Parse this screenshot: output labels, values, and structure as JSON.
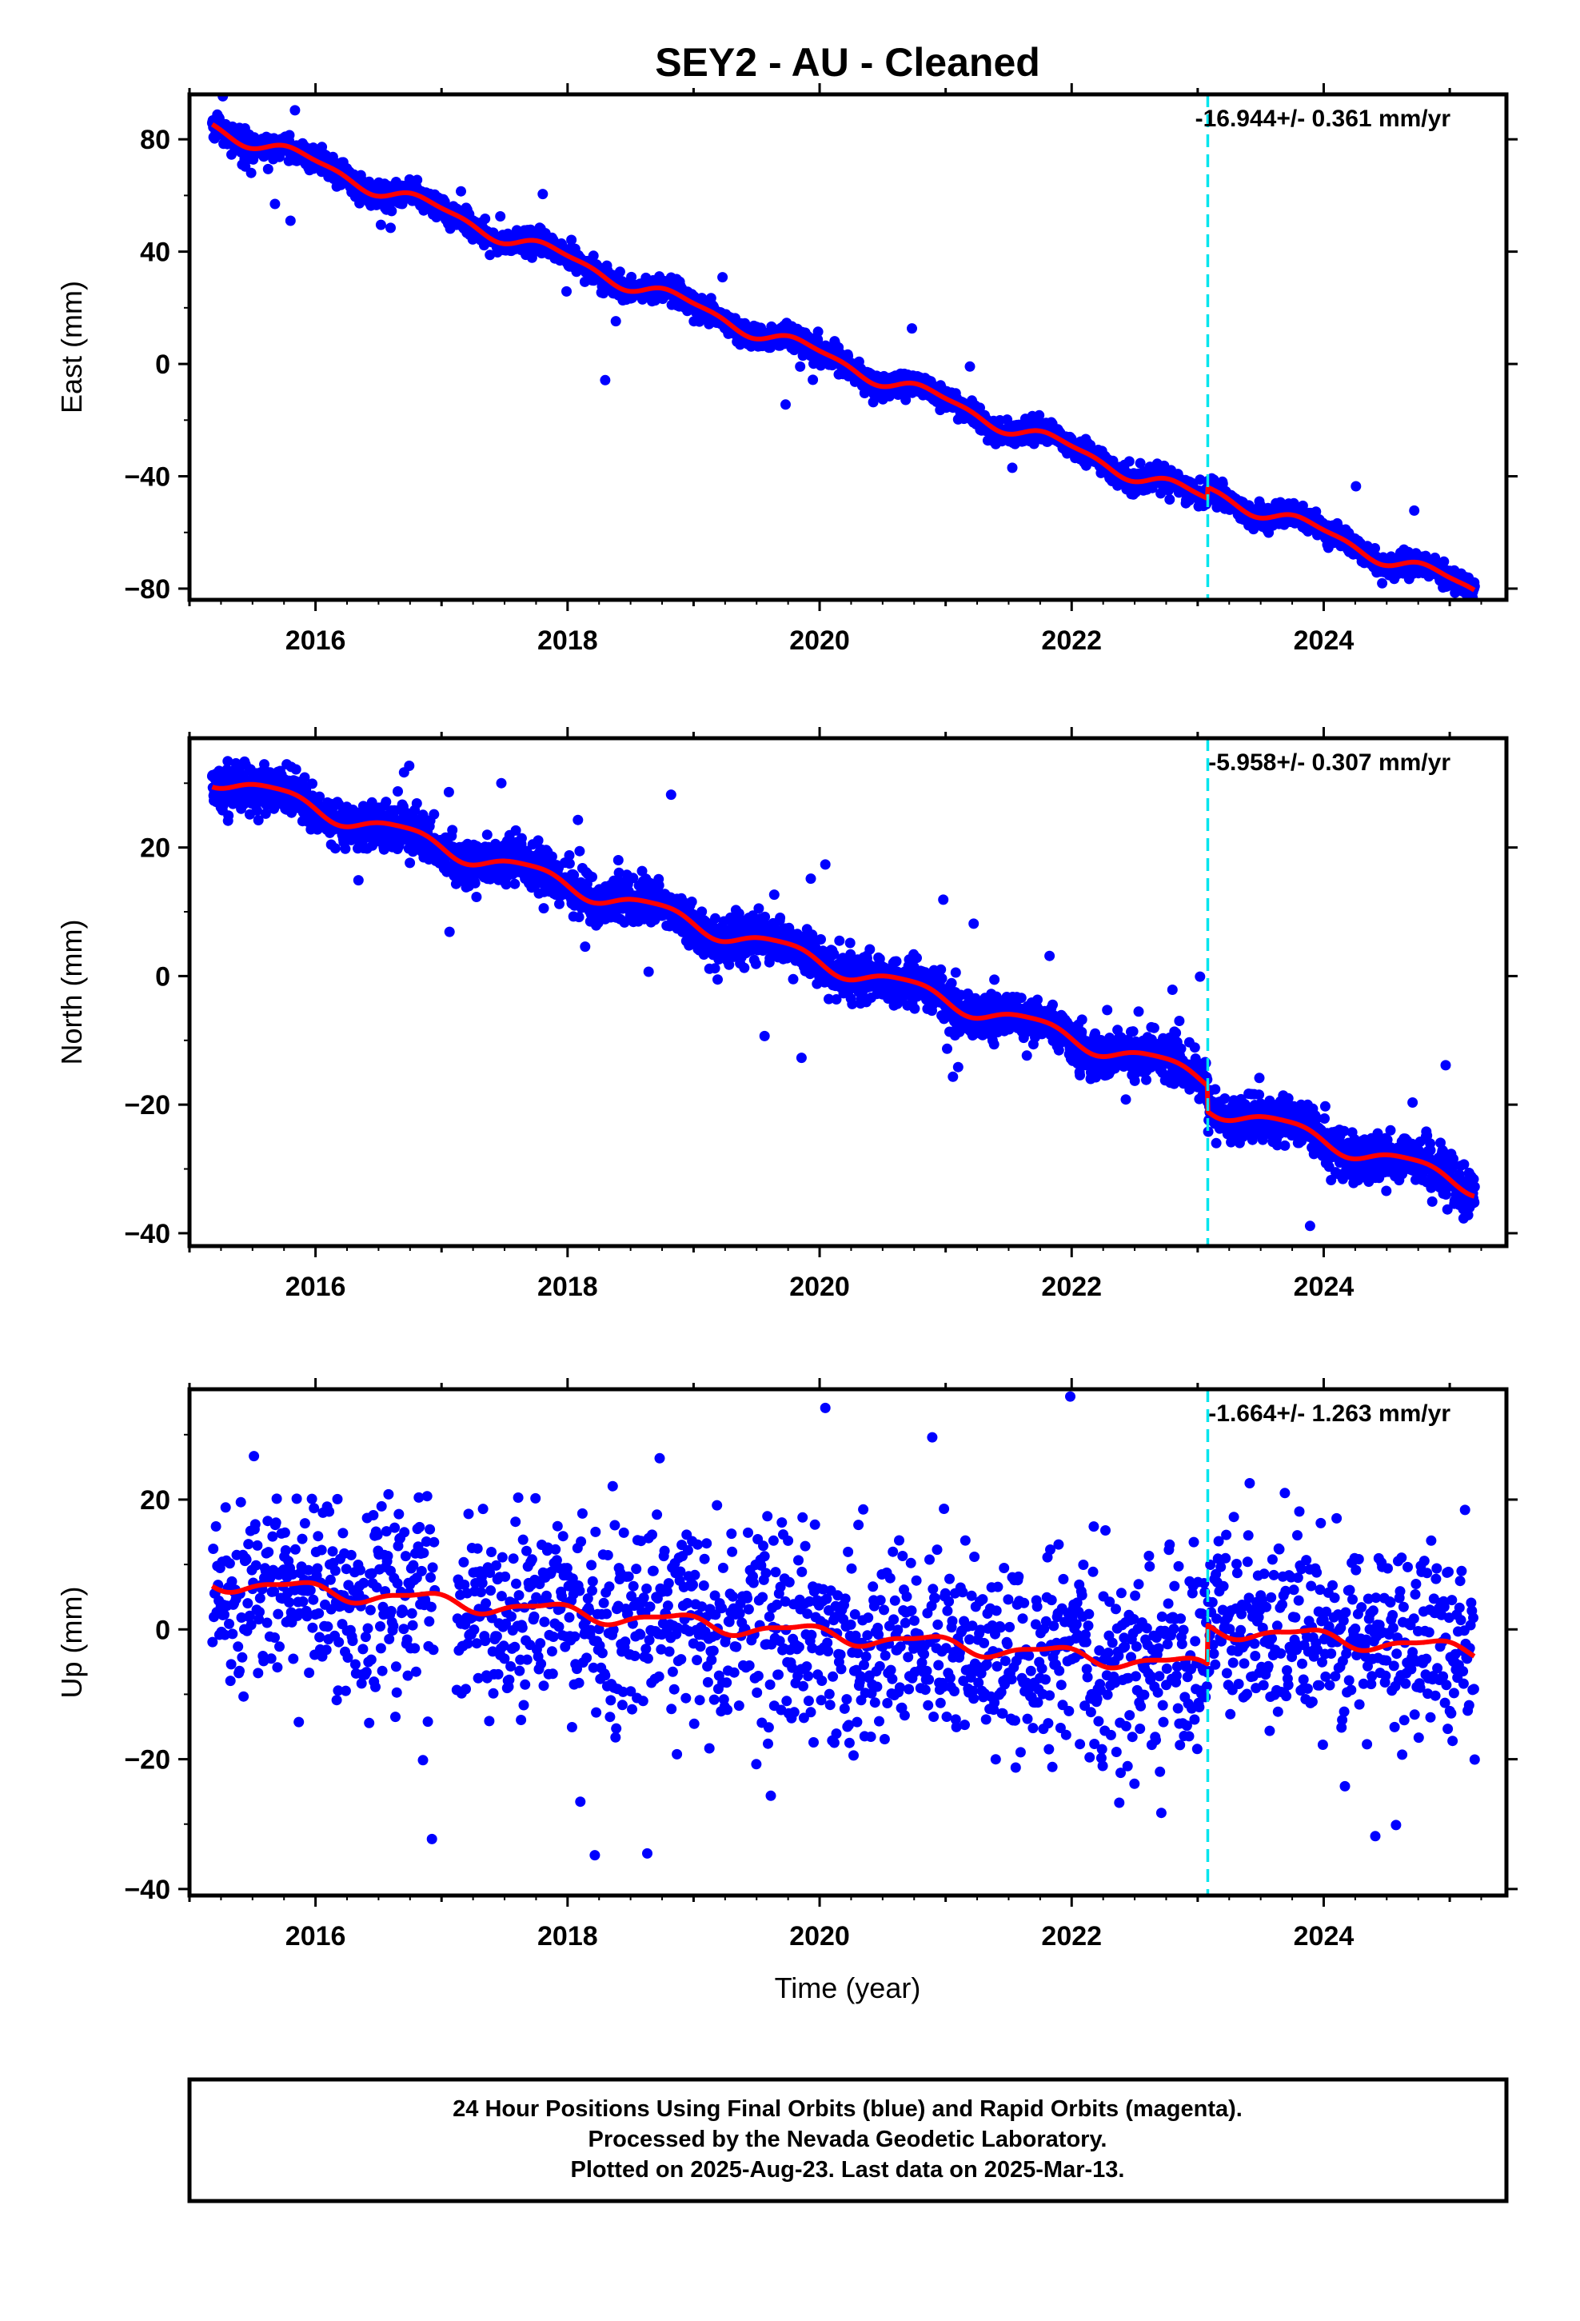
{
  "title": "SEY2  - AU - Cleaned",
  "xlabel": "Time (year)",
  "footer": {
    "lines": [
      "24 Hour Positions Using Final Orbits (blue) and Rapid Orbits (magenta).",
      "Processed by the Nevada Geodetic Laboratory.",
      "Plotted on 2025-Aug-23. Last data on 2025-Mar-13."
    ]
  },
  "colors": {
    "points": "#0000ff",
    "model": "#ff0000",
    "step_line": "#00e5ee",
    "frame": "#000000"
  },
  "chart_data": [
    {
      "type": "scatter",
      "ylabel": "East (mm)",
      "rate_text": "-16.944+/- 0.361 mm/yr",
      "xlim": [
        2015.0,
        2025.45
      ],
      "ylim": [
        -84,
        96
      ],
      "x_ticks": [
        2016,
        2018,
        2020,
        2022,
        2024
      ],
      "y_ticks": [
        80,
        40,
        0,
        -40,
        -80
      ],
      "grid": false,
      "step_epoch": 2023.08,
      "data_start": 2015.18,
      "data_end": 2025.2,
      "gaps": [],
      "model": {
        "rate": -16.944,
        "pivot": 2020.2,
        "intercept": 0.0,
        "annual_amp": 2.6,
        "annual_phase": 0.35,
        "semi_amp": 0.9,
        "semi_phase": 0.9,
        "step": 4.0,
        "step_epoch": 2023.08,
        "noise": 2.0,
        "outlier_rate": 0.01,
        "outlier_scale": 6.0
      },
      "series": [
        {
          "name": "24 Hour Positions (Final Orbits)",
          "values_kind": "daily positions"
        },
        {
          "name": "model",
          "values_kind": "fitted trajectory"
        }
      ]
    },
    {
      "type": "scatter",
      "ylabel": "North (mm)",
      "rate_text": "-5.958+/- 0.307 mm/yr",
      "xlim": [
        2015.0,
        2025.45
      ],
      "ylim": [
        -42,
        37
      ],
      "x_ticks": [
        2016,
        2018,
        2020,
        2022,
        2024
      ],
      "y_ticks": [
        20,
        0,
        -20,
        -40
      ],
      "grid": false,
      "step_epoch": 2023.08,
      "data_start": 2015.18,
      "data_end": 2025.2,
      "gaps": [],
      "model": {
        "rate": -5.958,
        "pivot": 2020.2,
        "intercept": 1.2,
        "annual_amp": 1.4,
        "annual_phase": 0.55,
        "semi_amp": 0.3,
        "semi_phase": 0.2,
        "step": -4.0,
        "step_epoch": 2023.08,
        "noise": 1.7,
        "outlier_rate": 0.015,
        "outlier_scale": 5.5
      },
      "series": [
        {
          "name": "24 Hour Positions (Final Orbits)",
          "values_kind": "daily positions"
        },
        {
          "name": "model",
          "values_kind": "fitted trajectory"
        }
      ]
    },
    {
      "type": "scatter",
      "ylabel": "Up (mm)",
      "rate_text": "-1.664+/- 1.263 mm/yr",
      "xlim": [
        2015.0,
        2025.45
      ],
      "ylim": [
        -41,
        37
      ],
      "x_ticks": [
        2016,
        2018,
        2020,
        2022,
        2024
      ],
      "y_ticks": [
        20,
        0,
        -20,
        -40
      ],
      "grid": false,
      "step_epoch": 2023.08,
      "data_start": 2015.18,
      "data_end": 2025.2,
      "gaps": [
        [
          2016.95,
          2017.12
        ]
      ],
      "point_stride": 2,
      "model": {
        "rate": -1.664,
        "pivot": 2020.2,
        "intercept": -1.0,
        "annual_amp": 1.1,
        "annual_phase": 0.4,
        "semi_amp": 0.4,
        "semi_phase": 0.1,
        "step": 6.0,
        "step_epoch": 2023.08,
        "noise": 7.5,
        "outlier_rate": 0.02,
        "outlier_scale": 2.2
      },
      "series": [
        {
          "name": "24 Hour Positions (Final Orbits)",
          "values_kind": "daily positions"
        },
        {
          "name": "model",
          "values_kind": "fitted trajectory"
        }
      ]
    }
  ]
}
